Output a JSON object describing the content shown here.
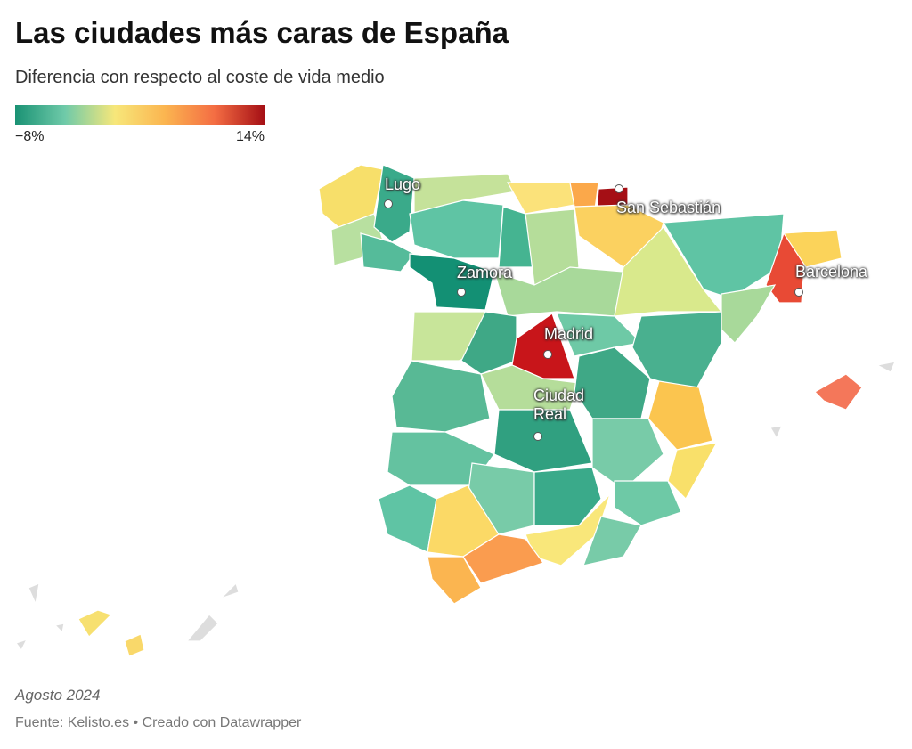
{
  "header": {
    "title": "Las ciudades más caras de España",
    "subtitle": "Diferencia con respecto al coste de vida medio"
  },
  "legend": {
    "colors": [
      "#1a9274",
      "#6fcaa9",
      "#f7e77a",
      "#fbb550",
      "#f46d43",
      "#a50f15"
    ],
    "ticks": [
      {
        "value": -8,
        "label": "−8%"
      },
      {
        "value": 14,
        "label": "14%"
      }
    ]
  },
  "cities": [
    "Lugo",
    "San Sebastián",
    "Zamora",
    "Barcelona",
    "Madrid",
    "Ciudad Real"
  ],
  "footer": {
    "note": "Agosto 2024",
    "source": "Fuente: Kelisto.es • Creado con Datawrapper"
  }
}
